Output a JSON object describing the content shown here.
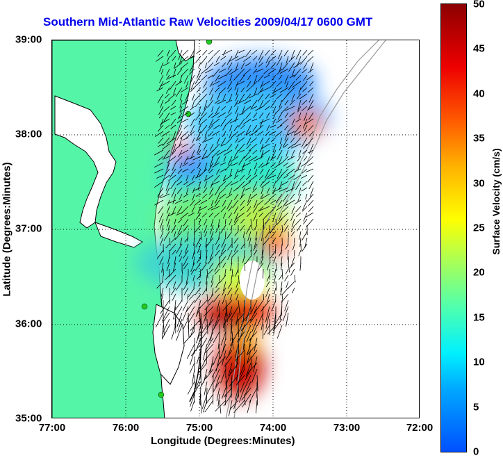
{
  "title": "Southern Mid-Atlantic Raw Velocities 2009/04/17 0600 GMT",
  "x_axis": {
    "label": "Longitude (Degrees:Minutes)",
    "ticks": [
      "77:00",
      "76:00",
      "75:00",
      "74:00",
      "73:00",
      "72:00"
    ]
  },
  "y_axis": {
    "label": "Latitude (Degrees:Minutes)",
    "ticks": [
      "39:00",
      "38:00",
      "37:00",
      "36:00",
      "35:00"
    ]
  },
  "colorbar": {
    "label": "Surface Velocity (cm/s)",
    "ticks": [
      "50",
      "45",
      "40",
      "35",
      "30",
      "25",
      "20",
      "15",
      "10",
      "5",
      "0"
    ],
    "colors": [
      "#0050ff",
      "#00f0ff",
      "#4dffb0",
      "#ffff00",
      "#ff5a00",
      "#8c0000"
    ]
  },
  "map": {
    "land_color": "#55f5a8",
    "coastline_color": "#000000",
    "bathymetry_color": "#999999",
    "grid": "dotted",
    "extent": {
      "lon": [
        -77,
        -72
      ],
      "lat": [
        35,
        39
      ]
    },
    "station_marker_color": "#22cc22"
  }
}
